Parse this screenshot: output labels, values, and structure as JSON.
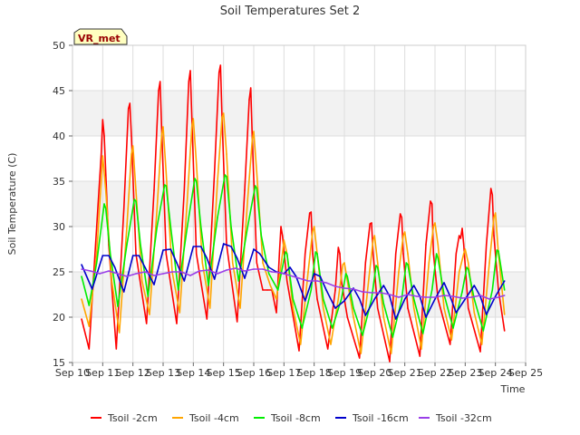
{
  "chart_data": {
    "type": "line",
    "title": "Soil Temperatures Set 2",
    "xlabel": "Time",
    "ylabel": "Soil Temperature (C)",
    "ylim": [
      15,
      50
    ],
    "yticks": [
      15,
      20,
      25,
      30,
      35,
      40,
      45,
      50
    ],
    "xlim": [
      10,
      25
    ],
    "xticks": [
      {
        "x": 10,
        "label": "Sep 10"
      },
      {
        "x": 11,
        "label": "Sep 11"
      },
      {
        "x": 12,
        "label": "Sep 12"
      },
      {
        "x": 13,
        "label": "Sep 13"
      },
      {
        "x": 14,
        "label": "Sep 14"
      },
      {
        "x": 15,
        "label": "Sep 15"
      },
      {
        "x": 16,
        "label": "Sep 16"
      },
      {
        "x": 17,
        "label": "Sep 17"
      },
      {
        "x": 18,
        "label": "Sep 18"
      },
      {
        "x": 19,
        "label": "Sep 19"
      },
      {
        "x": 20,
        "label": "Sep 20"
      },
      {
        "x": 21,
        "label": "Sep 21"
      },
      {
        "x": 22,
        "label": "Sep 22"
      },
      {
        "x": 23,
        "label": "Sep 23"
      },
      {
        "x": 24,
        "label": "Sep 24"
      },
      {
        "x": 25,
        "label": "Sep 25"
      }
    ],
    "annotation": "VR_met",
    "grid": true,
    "legend_position": "bottom",
    "series": [
      {
        "name": "Tsoil -2cm",
        "color": "#ff0000",
        "x": [
          10.3,
          10.55,
          10.8,
          10.95,
          11.0,
          11.05,
          11.2,
          11.45,
          11.7,
          11.85,
          11.9,
          11.95,
          12.1,
          12.45,
          12.7,
          12.85,
          12.9,
          12.95,
          13.1,
          13.45,
          13.7,
          13.85,
          13.9,
          13.95,
          14.1,
          14.45,
          14.7,
          14.85,
          14.9,
          14.95,
          15.1,
          15.45,
          15.7,
          15.85,
          15.9,
          15.95,
          16.1,
          16.3,
          16.45,
          16.6,
          16.75,
          16.85,
          16.9,
          16.95,
          17.1,
          17.5,
          17.7,
          17.85,
          17.9,
          17.95,
          18.1,
          18.45,
          18.7,
          18.8,
          18.85,
          18.9,
          19.1,
          19.5,
          19.7,
          19.85,
          19.9,
          19.95,
          20.1,
          20.5,
          20.7,
          20.85,
          20.9,
          20.95,
          21.1,
          21.5,
          21.7,
          21.85,
          21.9,
          21.95,
          22.1,
          22.5,
          22.7,
          22.8,
          22.85,
          22.9,
          22.95,
          23.1,
          23.5,
          23.7,
          23.85,
          23.9,
          23.95,
          24.1,
          24.3
        ],
        "y": [
          19.8,
          16.5,
          30,
          38,
          41.8,
          40,
          28,
          16.5,
          32,
          43,
          43.6,
          40,
          27,
          19.3,
          34,
          45,
          46,
          41,
          27,
          19.3,
          34,
          46,
          47.2,
          42,
          27,
          19.8,
          36,
          47,
          47.8,
          42,
          28,
          19.5,
          34,
          44,
          45.3,
          40,
          26,
          23,
          23,
          23,
          20.5,
          27,
          30,
          29,
          24,
          16.3,
          27,
          31.5,
          31.6,
          27,
          22,
          16.5,
          23,
          27.7,
          27,
          24,
          20,
          15.5,
          26,
          30.3,
          30.4,
          27,
          21,
          15.1,
          27,
          31.4,
          31,
          27,
          21,
          15.7,
          28,
          32.8,
          32.5,
          27,
          22,
          17,
          27,
          29,
          28.7,
          29.8,
          28,
          21,
          16.2,
          28,
          34.2,
          33.5,
          29,
          23,
          18.5
        ]
      },
      {
        "name": "Tsoil -4cm",
        "color": "#ffa500",
        "x": [
          10.3,
          10.55,
          10.8,
          10.95,
          11.0,
          11.1,
          11.3,
          11.55,
          11.8,
          11.95,
          12.0,
          12.1,
          12.3,
          12.55,
          12.8,
          12.95,
          13.0,
          13.1,
          13.3,
          13.55,
          13.8,
          13.95,
          14.0,
          14.1,
          14.3,
          14.55,
          14.8,
          14.95,
          15.0,
          15.1,
          15.3,
          15.55,
          15.8,
          15.95,
          16.0,
          16.1,
          16.3,
          16.55,
          16.75,
          16.95,
          17.0,
          17.1,
          17.3,
          17.55,
          17.8,
          17.95,
          18.0,
          18.1,
          18.3,
          18.55,
          18.8,
          18.95,
          19.0,
          19.1,
          19.3,
          19.55,
          19.8,
          19.95,
          20.0,
          20.1,
          20.3,
          20.55,
          20.8,
          20.95,
          21.0,
          21.1,
          21.3,
          21.55,
          21.8,
          21.95,
          22.0,
          22.1,
          22.3,
          22.55,
          22.8,
          22.95,
          23.0,
          23.1,
          23.3,
          23.55,
          23.8,
          23.95,
          24.0,
          24.1,
          24.3
        ],
        "y": [
          22,
          19,
          27,
          35,
          37.8,
          34,
          24,
          18.3,
          30,
          38,
          38.9,
          34,
          24,
          20.3,
          32,
          40,
          41,
          36,
          25,
          20.5,
          33,
          41,
          41.9,
          37,
          26,
          21,
          35,
          42,
          42.5,
          38,
          26,
          21,
          33,
          39.5,
          40.5,
          36,
          26,
          23.5,
          22,
          27,
          28.5,
          27,
          21,
          17,
          25,
          29.5,
          30,
          27,
          21,
          17,
          22,
          25.8,
          26,
          24,
          20,
          16,
          24,
          28.5,
          29,
          26,
          20,
          16,
          25,
          29,
          29.4,
          27,
          21,
          16.5,
          26,
          30,
          30.4,
          28,
          21,
          17.5,
          25,
          27,
          27.5,
          26,
          20.5,
          17,
          26,
          31,
          31.5,
          27,
          20.3
        ]
      },
      {
        "name": "Tsoil -8cm",
        "color": "#00ee00",
        "x": [
          10.3,
          10.55,
          10.8,
          11.05,
          11.1,
          11.25,
          11.5,
          11.8,
          12.05,
          12.1,
          12.25,
          12.5,
          12.8,
          13.05,
          13.1,
          13.25,
          13.5,
          13.8,
          14.05,
          14.1,
          14.25,
          14.5,
          14.8,
          15.05,
          15.1,
          15.25,
          15.5,
          15.8,
          16.05,
          16.1,
          16.25,
          16.5,
          16.8,
          17.05,
          17.1,
          17.3,
          17.6,
          17.9,
          18.05,
          18.1,
          18.3,
          18.6,
          18.9,
          19.05,
          19.1,
          19.3,
          19.6,
          19.9,
          20.05,
          20.1,
          20.3,
          20.6,
          20.9,
          21.05,
          21.1,
          21.3,
          21.6,
          21.9,
          22.05,
          22.1,
          22.3,
          22.6,
          22.9,
          23.05,
          23.1,
          23.3,
          23.6,
          23.9,
          24.05,
          24.1,
          24.3
        ],
        "y": [
          24.5,
          21.3,
          26,
          32.5,
          32,
          27,
          21.2,
          28,
          33,
          32.8,
          28,
          22.3,
          30,
          34.6,
          34.5,
          30,
          23,
          30,
          35.3,
          35,
          30,
          23.5,
          31,
          35.7,
          35.5,
          30,
          24,
          30,
          34.5,
          34.2,
          29,
          24.8,
          23,
          27.2,
          27,
          22,
          18.8,
          23,
          27.2,
          27,
          22,
          18.8,
          22,
          24.8,
          24.5,
          21,
          18,
          22,
          25.7,
          25.5,
          21.5,
          17.8,
          22,
          26,
          25.8,
          22,
          18.2,
          23,
          27,
          26.5,
          22.5,
          18.8,
          22.8,
          25.5,
          25.3,
          22,
          18.5,
          23,
          27.4,
          27.3,
          23
        ]
      },
      {
        "name": "Tsoil -16cm",
        "color": "#0000cc",
        "x": [
          10.3,
          10.65,
          11.0,
          11.2,
          11.4,
          11.7,
          12.0,
          12.2,
          12.4,
          12.7,
          13.0,
          13.25,
          13.45,
          13.7,
          14.0,
          14.25,
          14.45,
          14.7,
          15.0,
          15.25,
          15.45,
          15.7,
          16.0,
          16.2,
          16.5,
          16.75,
          17.0,
          17.2,
          17.4,
          17.7,
          18.0,
          18.2,
          18.4,
          18.7,
          19.0,
          19.3,
          19.5,
          19.7,
          20.0,
          20.3,
          20.5,
          20.7,
          21.0,
          21.3,
          21.5,
          21.7,
          22.0,
          22.3,
          22.5,
          22.7,
          23.0,
          23.3,
          23.5,
          23.7,
          24.0,
          24.3
        ],
        "y": [
          25.8,
          23.1,
          26.8,
          26.8,
          25.5,
          22.8,
          26.8,
          26.8,
          25.5,
          23.6,
          27.4,
          27.5,
          26,
          24,
          27.8,
          27.8,
          26.5,
          24.2,
          28.1,
          27.8,
          26.5,
          24.3,
          27.5,
          27,
          25.5,
          25,
          24.8,
          25.5,
          24.5,
          21.8,
          24.8,
          24.5,
          23,
          21,
          21.8,
          23.2,
          22,
          20.2,
          22,
          23.5,
          22.3,
          19.8,
          22,
          23.5,
          22.3,
          20,
          22,
          23.8,
          22.3,
          20.5,
          22,
          23.5,
          22.3,
          20.3,
          22.3,
          24
        ]
      },
      {
        "name": "Tsoil -32cm",
        "color": "#9a3fe8",
        "x": [
          10.3,
          10.6,
          10.9,
          11.2,
          11.5,
          11.8,
          12.1,
          12.4,
          12.7,
          13.0,
          13.3,
          13.6,
          13.9,
          14.2,
          14.5,
          14.8,
          15.1,
          15.4,
          15.7,
          16.0,
          16.3,
          16.6,
          16.9,
          17.2,
          17.5,
          17.8,
          18.1,
          18.4,
          18.7,
          19.0,
          19.3,
          19.6,
          19.9,
          20.2,
          20.5,
          20.8,
          21.1,
          21.4,
          21.7,
          22.0,
          22.3,
          22.6,
          22.9,
          23.2,
          23.5,
          23.8,
          24.1,
          24.3
        ],
        "y": [
          25.3,
          25.1,
          24.8,
          25.1,
          24.8,
          24.5,
          24.8,
          25.0,
          24.6,
          24.8,
          25.0,
          25.0,
          24.6,
          25.1,
          25.2,
          24.8,
          25.2,
          25.4,
          25.1,
          25.3,
          25.3,
          25.0,
          24.9,
          24.6,
          24.3,
          24.0,
          24.0,
          23.8,
          23.4,
          23.2,
          23.1,
          22.8,
          22.7,
          22.7,
          22.5,
          22.2,
          22.5,
          22.3,
          22.2,
          22.2,
          22.4,
          22.3,
          22.1,
          22.2,
          22.4,
          22.0,
          22.2,
          22.4
        ]
      }
    ]
  }
}
